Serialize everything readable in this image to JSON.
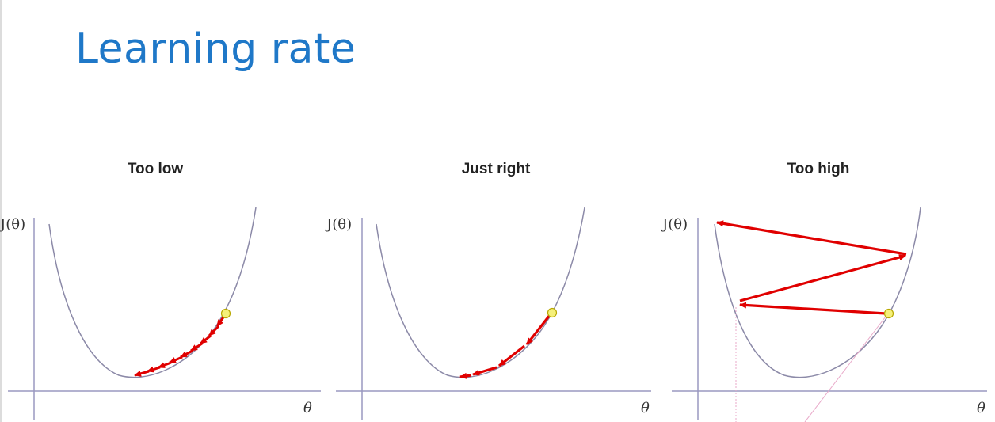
{
  "slide": {
    "title": "Learning rate"
  },
  "panels": [
    {
      "id": "too-low",
      "title": "Too low",
      "y_label": "J(θ)",
      "x_label": "θ"
    },
    {
      "id": "just-right",
      "title": "Just right",
      "y_label": "J(θ)",
      "x_label": "θ"
    },
    {
      "id": "too-high",
      "title": "Too high",
      "y_label": "J(θ)",
      "x_label": "θ"
    }
  ],
  "colors": {
    "title": "#1f78c8",
    "curve": "#8c8aa8",
    "axis": "#9a98c0",
    "arrow": "#e00000",
    "point_fill": "#f5f07a",
    "point_stroke": "#b8a800",
    "guide": "#e9a9c9"
  }
}
